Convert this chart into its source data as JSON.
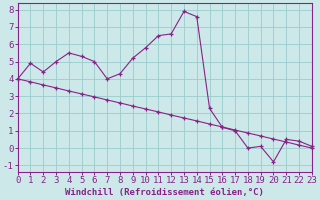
{
  "xlabel": "Windchill (Refroidissement éolien,°C)",
  "x_ticks": [
    0,
    1,
    2,
    3,
    4,
    5,
    6,
    7,
    8,
    9,
    10,
    11,
    12,
    13,
    14,
    15,
    16,
    17,
    18,
    19,
    20,
    21,
    22,
    23
  ],
  "y_ticks": [
    -1,
    0,
    1,
    2,
    3,
    4,
    5,
    6,
    7,
    8
  ],
  "xlim": [
    0,
    23
  ],
  "ylim": [
    -1.4,
    8.4
  ],
  "background_color": "#cce8e8",
  "line_color": "#882288",
  "grid_color": "#99cccc",
  "line1_x": [
    0,
    1,
    2,
    3,
    4,
    5,
    6,
    7,
    8,
    9,
    10,
    11,
    12,
    13,
    14,
    15,
    16,
    17,
    18,
    19,
    20,
    21,
    22,
    23
  ],
  "line1_y": [
    4.0,
    4.9,
    4.4,
    5.0,
    5.5,
    5.3,
    5.0,
    4.0,
    4.3,
    5.2,
    5.8,
    6.5,
    6.6,
    7.9,
    7.6,
    2.3,
    1.2,
    1.0,
    0.0,
    0.1,
    -0.8,
    0.5,
    0.4,
    0.1
  ],
  "line2_x": [
    0,
    1,
    2,
    3,
    4,
    5,
    6,
    7,
    8,
    9,
    10,
    11,
    12,
    13,
    14,
    15,
    16,
    17,
    18,
    19,
    20,
    21,
    22,
    23
  ],
  "line2_y": [
    4.0,
    3.83,
    3.65,
    3.48,
    3.3,
    3.13,
    2.96,
    2.78,
    2.61,
    2.43,
    2.26,
    2.09,
    1.91,
    1.74,
    1.57,
    1.39,
    1.22,
    1.04,
    0.87,
    0.7,
    0.52,
    0.35,
    0.17,
    0.0
  ],
  "tick_fontsize": 6.5,
  "xlabel_fontsize": 6.5
}
